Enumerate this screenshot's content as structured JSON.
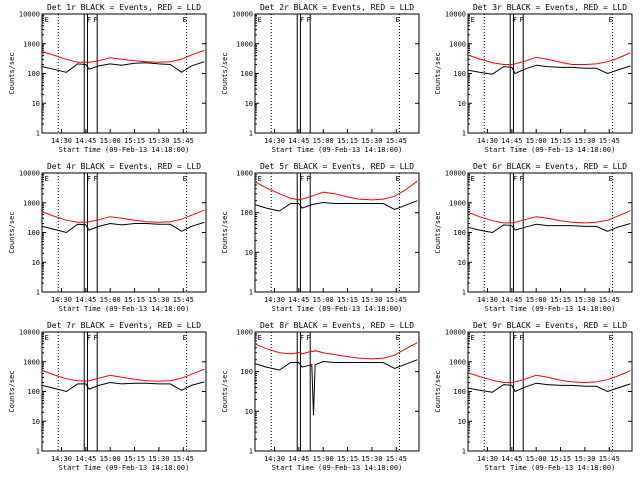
{
  "panels_meta": {
    "title_suffix": "BLACK = Events, RED = LLD",
    "xlabel": "Start Time (09-Feb-13 14:18:00)",
    "ylabel": "Counts/sec",
    "markers": [
      "E",
      "F",
      "F",
      "E"
    ],
    "colors": {
      "events": "#000000",
      "lld": "#ff0000",
      "axes": "#000000",
      "background": "#ffffff"
    }
  },
  "chart_data": [
    {
      "type": "line",
      "title": "Det 1r BLACK = Events, RED = LLD",
      "xlabel": "Start Time (09-Feb-13 14:18:00)",
      "ylabel": "Counts/sec",
      "yscale": "log",
      "ylim": [
        1,
        10000
      ],
      "x_tick_labels": [
        "14:30",
        "14:45",
        "15:00",
        "15:15",
        "15:30",
        "15:45"
      ],
      "y_tick_labels": [
        "1",
        "10",
        "100",
        "1000",
        "10000"
      ],
      "series": [
        {
          "name": "Events",
          "color": "#000000",
          "x": [
            "14:18",
            "14:25",
            "14:33",
            "14:40",
            "14:45",
            "14:47",
            "14:53",
            "15:00",
            "15:07",
            "15:15",
            "15:22",
            "15:30",
            "15:37",
            "15:44",
            "15:50",
            "15:58"
          ],
          "values": [
            170,
            140,
            110,
            210,
            200,
            140,
            180,
            210,
            190,
            220,
            230,
            210,
            200,
            110,
            180,
            250
          ]
        },
        {
          "name": "LLD",
          "color": "#ff0000",
          "x": [
            "14:18",
            "14:25",
            "14:33",
            "14:40",
            "14:45",
            "14:47",
            "14:53",
            "15:00",
            "15:07",
            "15:15",
            "15:22",
            "15:30",
            "15:37",
            "15:44",
            "15:50",
            "15:58"
          ],
          "values": [
            550,
            420,
            300,
            240,
            240,
            240,
            270,
            340,
            300,
            270,
            250,
            240,
            250,
            300,
            420,
            600
          ]
        }
      ]
    },
    {
      "type": "line",
      "title": "Det 2r BLACK = Events, RED = LLD",
      "xlabel": "Start Time (09-Feb-13 14:18:00)",
      "ylabel": "Counts/sec",
      "yscale": "log",
      "ylim": [
        1,
        10000
      ],
      "x_tick_labels": [
        "14:30",
        "14:45",
        "15:00",
        "15:15",
        "15:30",
        "15:45"
      ],
      "y_tick_labels": [
        "1",
        "10",
        "100",
        "1000",
        "10000"
      ],
      "series": []
    },
    {
      "type": "line",
      "title": "Det 3r BLACK = Events, RED = LLD",
      "xlabel": "Start Time (09-Feb-13 14:18:00)",
      "ylabel": "Counts/sec",
      "yscale": "log",
      "ylim": [
        1,
        10000
      ],
      "x_tick_labels": [
        "14:30",
        "14:45",
        "15:00",
        "15:15",
        "15:30",
        "15:45"
      ],
      "y_tick_labels": [
        "1",
        "10",
        "100",
        "1000",
        "10000"
      ],
      "series": [
        {
          "name": "Events",
          "color": "#000000",
          "x": [
            "14:18",
            "14:25",
            "14:33",
            "14:40",
            "14:45",
            "14:47",
            "14:53",
            "15:00",
            "15:07",
            "15:15",
            "15:22",
            "15:30",
            "15:37",
            "15:44",
            "15:50",
            "15:58"
          ],
          "values": [
            130,
            110,
            95,
            170,
            160,
            100,
            140,
            190,
            170,
            160,
            160,
            150,
            150,
            100,
            130,
            180
          ]
        },
        {
          "name": "LLD",
          "color": "#ff0000",
          "x": [
            "14:18",
            "14:25",
            "14:33",
            "14:40",
            "14:45",
            "14:47",
            "14:53",
            "15:00",
            "15:07",
            "15:15",
            "15:22",
            "15:30",
            "15:37",
            "15:44",
            "15:50",
            "15:58"
          ],
          "values": [
            420,
            310,
            230,
            200,
            200,
            210,
            260,
            350,
            300,
            240,
            200,
            200,
            210,
            250,
            320,
            500
          ]
        }
      ]
    },
    {
      "type": "line",
      "title": "Det 4r BLACK = Events, RED = LLD",
      "xlabel": "Start Time (09-Feb-13 14:18:00)",
      "ylabel": "Counts/sec",
      "yscale": "log",
      "ylim": [
        1,
        10000
      ],
      "x_tick_labels": [
        "14:30",
        "14:45",
        "15:00",
        "15:15",
        "15:30",
        "15:45"
      ],
      "y_tick_labels": [
        "1",
        "10",
        "100",
        "1000",
        "10000"
      ],
      "series": [
        {
          "name": "Events",
          "color": "#000000",
          "x": [
            "14:18",
            "14:25",
            "14:33",
            "14:40",
            "14:45",
            "14:47",
            "14:53",
            "15:00",
            "15:07",
            "15:15",
            "15:22",
            "15:30",
            "15:37",
            "15:44",
            "15:50",
            "15:58"
          ],
          "values": [
            160,
            130,
            100,
            190,
            180,
            120,
            160,
            200,
            180,
            200,
            200,
            190,
            190,
            110,
            160,
            220
          ]
        },
        {
          "name": "LLD",
          "color": "#ff0000",
          "x": [
            "14:18",
            "14:25",
            "14:33",
            "14:40",
            "14:45",
            "14:47",
            "14:53",
            "15:00",
            "15:07",
            "15:15",
            "15:22",
            "15:30",
            "15:37",
            "15:44",
            "15:50",
            "15:58"
          ],
          "values": [
            500,
            360,
            260,
            220,
            220,
            230,
            270,
            340,
            300,
            260,
            230,
            220,
            230,
            280,
            380,
            560
          ]
        }
      ]
    },
    {
      "type": "line",
      "title": "Det 5r BLACK = Events, RED = LLD",
      "xlabel": "Start Time (09-Feb-13 14:18:00)",
      "ylabel": "Counts/sec",
      "yscale": "log",
      "ylim": [
        1,
        1000
      ],
      "x_tick_labels": [
        "14:30",
        "14:45",
        "15:00",
        "15:15",
        "15:30",
        "15:45"
      ],
      "y_tick_labels": [
        "1",
        "10",
        "100",
        "1000"
      ],
      "series": [
        {
          "name": "Events",
          "color": "#000000",
          "x": [
            "14:18",
            "14:25",
            "14:33",
            "14:40",
            "14:45",
            "14:47",
            "14:53",
            "15:00",
            "15:07",
            "15:15",
            "15:22",
            "15:30",
            "15:37",
            "15:44",
            "15:50",
            "15:58"
          ],
          "values": [
            160,
            130,
            110,
            170,
            170,
            130,
            160,
            180,
            170,
            170,
            170,
            170,
            170,
            120,
            150,
            200
          ]
        },
        {
          "name": "LLD",
          "color": "#ff0000",
          "x": [
            "14:18",
            "14:25",
            "14:33",
            "14:40",
            "14:45",
            "14:47",
            "14:53",
            "15:00",
            "15:07",
            "15:15",
            "15:22",
            "15:30",
            "15:37",
            "15:44",
            "15:50",
            "15:58"
          ],
          "values": [
            600,
            420,
            300,
            230,
            210,
            220,
            260,
            330,
            300,
            250,
            220,
            210,
            220,
            260,
            360,
            620
          ]
        }
      ]
    },
    {
      "type": "line",
      "title": "Det 6r BLACK = Events, RED = LLD",
      "xlabel": "Start Time (09-Feb-13 14:18:00)",
      "ylabel": "Counts/sec",
      "yscale": "log",
      "ylim": [
        1,
        10000
      ],
      "x_tick_labels": [
        "14:30",
        "14:45",
        "15:00",
        "15:15",
        "15:30",
        "15:45"
      ],
      "y_tick_labels": [
        "1",
        "10",
        "100",
        "1000",
        "10000"
      ],
      "series": [
        {
          "name": "Events",
          "color": "#000000",
          "x": [
            "14:18",
            "14:25",
            "14:33",
            "14:40",
            "14:45",
            "14:47",
            "14:53",
            "15:00",
            "15:07",
            "15:15",
            "15:22",
            "15:30",
            "15:37",
            "15:44",
            "15:50",
            "15:58"
          ],
          "values": [
            150,
            120,
            100,
            180,
            170,
            120,
            150,
            190,
            170,
            170,
            170,
            160,
            160,
            110,
            150,
            200
          ]
        },
        {
          "name": "LLD",
          "color": "#ff0000",
          "x": [
            "14:18",
            "14:25",
            "14:33",
            "14:40",
            "14:45",
            "14:47",
            "14:53",
            "15:00",
            "15:07",
            "15:15",
            "15:22",
            "15:30",
            "15:37",
            "15:44",
            "15:50",
            "15:58"
          ],
          "values": [
            480,
            340,
            250,
            210,
            210,
            220,
            270,
            340,
            300,
            250,
            220,
            210,
            220,
            260,
            350,
            540
          ]
        }
      ]
    },
    {
      "type": "line",
      "title": "Det 7r BLACK = Events, RED = LLD",
      "xlabel": "Start Time (09-Feb-13 14:18:00)",
      "ylabel": "Counts/sec",
      "yscale": "log",
      "ylim": [
        1,
        10000
      ],
      "x_tick_labels": [
        "14:30",
        "14:45",
        "15:00",
        "15:15",
        "15:30",
        "15:45"
      ],
      "y_tick_labels": [
        "1",
        "10",
        "100",
        "1000",
        "10000"
      ],
      "series": [
        {
          "name": "Events",
          "color": "#000000",
          "x": [
            "14:18",
            "14:25",
            "14:33",
            "14:40",
            "14:45",
            "14:47",
            "14:53",
            "15:00",
            "15:07",
            "15:15",
            "15:22",
            "15:30",
            "15:37",
            "15:44",
            "15:50",
            "15:58"
          ],
          "values": [
            160,
            130,
            100,
            180,
            180,
            120,
            160,
            200,
            180,
            190,
            190,
            180,
            180,
            110,
            160,
            210
          ]
        },
        {
          "name": "LLD",
          "color": "#ff0000",
          "x": [
            "14:18",
            "14:25",
            "14:33",
            "14:40",
            "14:45",
            "14:47",
            "14:53",
            "15:00",
            "15:07",
            "15:15",
            "15:22",
            "15:30",
            "15:37",
            "15:44",
            "15:50",
            "15:58"
          ],
          "values": [
            520,
            370,
            270,
            230,
            220,
            230,
            280,
            350,
            300,
            260,
            230,
            220,
            230,
            280,
            380,
            560
          ]
        }
      ]
    },
    {
      "type": "line",
      "title": "Det 8r BLACK = Events, RED = LLD",
      "xlabel": "Start Time (09-Feb-13 14:18:00)",
      "ylabel": "Counts/sec",
      "yscale": "log",
      "ylim": [
        1,
        1000
      ],
      "x_tick_labels": [
        "14:30",
        "14:45",
        "15:00",
        "15:15",
        "15:30",
        "15:45"
      ],
      "y_tick_labels": [
        "1",
        "10",
        "100",
        "1000"
      ],
      "series": [
        {
          "name": "Events",
          "color": "#000000",
          "x": [
            "14:18",
            "14:25",
            "14:33",
            "14:40",
            "14:45",
            "14:47",
            "14:53",
            "14:54",
            "14:55",
            "15:00",
            "15:07",
            "15:15",
            "15:22",
            "15:30",
            "15:37",
            "15:44",
            "15:50",
            "15:58"
          ],
          "values": [
            160,
            130,
            110,
            170,
            170,
            130,
            150,
            8,
            150,
            180,
            170,
            170,
            170,
            170,
            170,
            120,
            150,
            200
          ]
        },
        {
          "name": "LLD",
          "color": "#ff0000",
          "x": [
            "14:18",
            "14:25",
            "14:33",
            "14:40",
            "14:45",
            "14:47",
            "14:53",
            "14:54",
            "14:55",
            "15:00",
            "15:07",
            "15:15",
            "15:22",
            "15:30",
            "15:37",
            "15:44",
            "15:50",
            "15:58"
          ],
          "values": [
            500,
            380,
            300,
            280,
            300,
            280,
            330,
            320,
            340,
            300,
            270,
            240,
            220,
            210,
            220,
            260,
            360,
            540
          ]
        }
      ]
    },
    {
      "type": "line",
      "title": "Det 9r BLACK = Events, RED = LLD",
      "xlabel": "Start Time (09-Feb-13 14:18:00)",
      "ylabel": "Counts/sec",
      "yscale": "log",
      "ylim": [
        1,
        10000
      ],
      "x_tick_labels": [
        "14:30",
        "14:45",
        "15:00",
        "15:15",
        "15:30",
        "15:45"
      ],
      "y_tick_labels": [
        "1",
        "10",
        "100",
        "1000",
        "10000"
      ],
      "series": [
        {
          "name": "Events",
          "color": "#000000",
          "x": [
            "14:18",
            "14:25",
            "14:33",
            "14:40",
            "14:45",
            "14:47",
            "14:53",
            "15:00",
            "15:07",
            "15:15",
            "15:22",
            "15:30",
            "15:37",
            "15:44",
            "15:50",
            "15:58"
          ],
          "values": [
            130,
            110,
            95,
            170,
            160,
            100,
            140,
            190,
            170,
            160,
            160,
            150,
            150,
            100,
            130,
            180
          ]
        },
        {
          "name": "LLD",
          "color": "#ff0000",
          "x": [
            "14:18",
            "14:25",
            "14:33",
            "14:40",
            "14:45",
            "14:47",
            "14:53",
            "15:00",
            "15:07",
            "15:15",
            "15:22",
            "15:30",
            "15:37",
            "15:44",
            "15:50",
            "15:58"
          ],
          "values": [
            430,
            320,
            240,
            200,
            200,
            210,
            260,
            350,
            300,
            240,
            210,
            200,
            210,
            250,
            330,
            500
          ]
        }
      ]
    }
  ]
}
